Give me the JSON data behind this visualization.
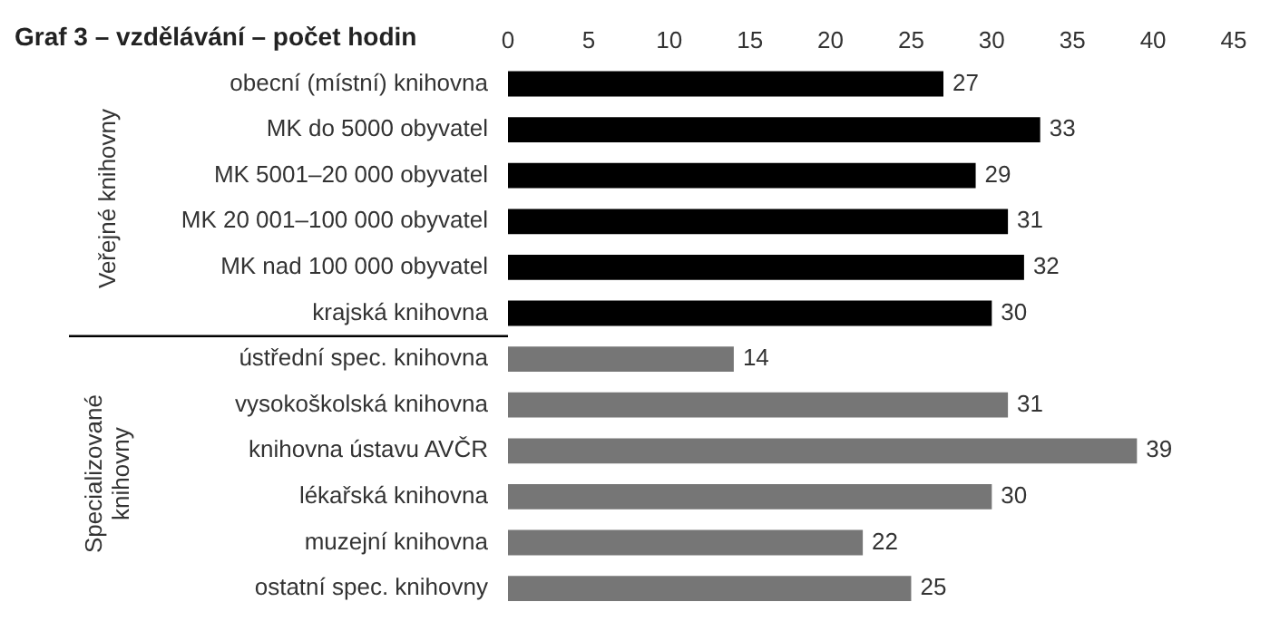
{
  "chart_data": {
    "type": "bar",
    "orientation": "horizontal",
    "title": "Graf 3 – vzdělávání – počet hodin",
    "categories": [
      "obecní (místní) knihovna",
      "MK do 5000 obyvatel",
      "MK 5001–20 000 obyvatel",
      "MK 20 001–100 000 obyvatel",
      "MK nad 100 000 obyvatel",
      "krajská knihovna",
      "ústřední spec. knihovna",
      "vysokoškolská knihovna",
      "knihovna ústavu AVČR",
      "lékařská knihovna",
      "muzejní knihovna",
      "ostatní spec. knihovny"
    ],
    "values": [
      27,
      33,
      29,
      31,
      32,
      30,
      14,
      31,
      39,
      30,
      22,
      25
    ],
    "colors": [
      "#000000",
      "#000000",
      "#000000",
      "#000000",
      "#000000",
      "#000000",
      "#767676",
      "#767676",
      "#767676",
      "#767676",
      "#767676",
      "#767676"
    ],
    "xlim": [
      0,
      45
    ],
    "xticks": [
      0,
      5,
      10,
      15,
      20,
      25,
      30,
      35,
      40,
      45
    ],
    "data_labels": true,
    "grid": false,
    "legend": false,
    "annotations": [
      "Veřejné knihovny",
      "Specializované knihovny"
    ]
  }
}
